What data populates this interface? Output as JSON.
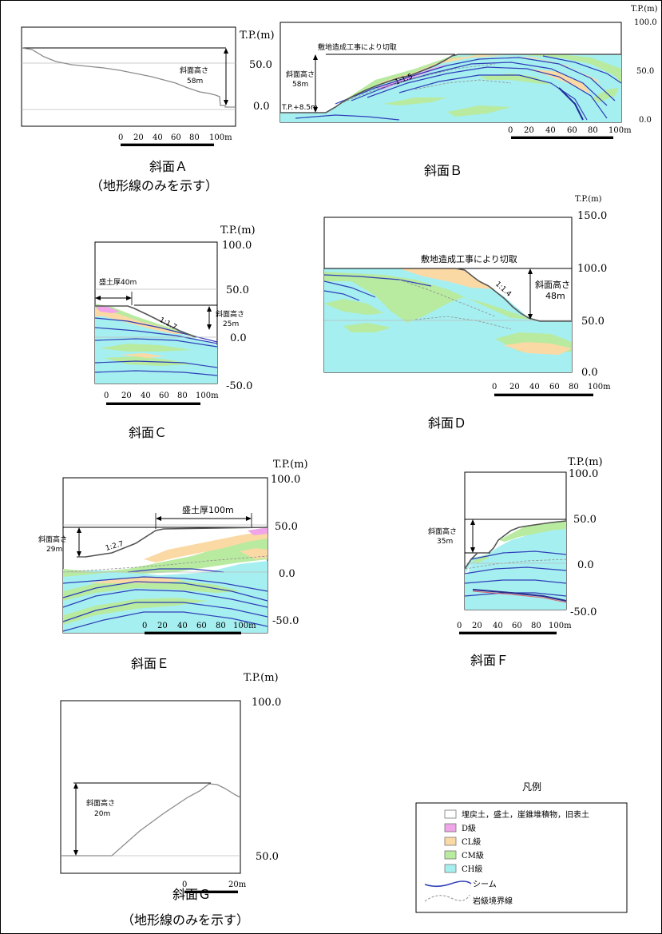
{
  "axis_title": "T.P.(m)",
  "colors": {
    "fill_soil": "#ffffff",
    "d_class": "#f0a5e8",
    "cl_class": "#fbd9a5",
    "cm_class": "#b8eaa0",
    "ch_class": "#a6eff0",
    "seam": "#2f3fb8",
    "boundary": "#8f8f8f"
  },
  "slope_height_label": "斜面高さ",
  "scalebar_100": [
    "0",
    "20",
    "40",
    "60",
    "80",
    "100m"
  ],
  "scalebar_20": [
    "0",
    "20m"
  ],
  "panels": {
    "a": {
      "caption": "斜面Ａ",
      "caption_sub": "（地形線のみを示す）",
      "height": "58m",
      "ticks": [
        "50.0",
        "0.0"
      ]
    },
    "b": {
      "caption": "斜面Ｂ",
      "note": "敷地造成工事により切取",
      "height": "58m",
      "slope": "1:1.5",
      "base": "T.P.+8.5m",
      "ticks": [
        "100.0",
        "50.0",
        "0.0"
      ]
    },
    "c": {
      "caption": "斜面Ｃ",
      "fill": "盛土厚40m",
      "height": "25m",
      "slope": "1:1.7",
      "ticks": [
        "100.0",
        "50.0",
        "0.0",
        "-50.0"
      ]
    },
    "d": {
      "caption": "斜面Ｄ",
      "note": "敷地造成工事により切取",
      "height": "48m",
      "slope": "1:1.4",
      "ticks": [
        "150.0",
        "100.0",
        "50.0",
        "0.0"
      ]
    },
    "e": {
      "caption": "斜面Ｅ",
      "fill": "盛土厚100m",
      "height": "29m",
      "slope": "1:2.7",
      "ticks": [
        "100.0",
        "50.0",
        "0.0",
        "-50.0"
      ]
    },
    "f": {
      "caption": "斜面Ｆ",
      "height": "35m",
      "ticks": [
        "100.0",
        "50.0",
        "0.0",
        "-50.0"
      ]
    },
    "g": {
      "caption": "斜面Ｇ",
      "caption_sub": "（地形線のみを示す）",
      "height": "20m",
      "ticks": [
        "100.0",
        "50.0"
      ]
    }
  },
  "legend": {
    "title": "凡例",
    "items": [
      {
        "key": "fill_soil",
        "label": "埋戻土，盛土，崖錐堆積物，旧表土"
      },
      {
        "key": "d_class",
        "label": "D級"
      },
      {
        "key": "cl_class",
        "label": "CL級"
      },
      {
        "key": "cm_class",
        "label": "CM級"
      },
      {
        "key": "ch_class",
        "label": "CH級"
      }
    ],
    "seam_label": "シーム",
    "boundary_label": "岩級境界線"
  }
}
